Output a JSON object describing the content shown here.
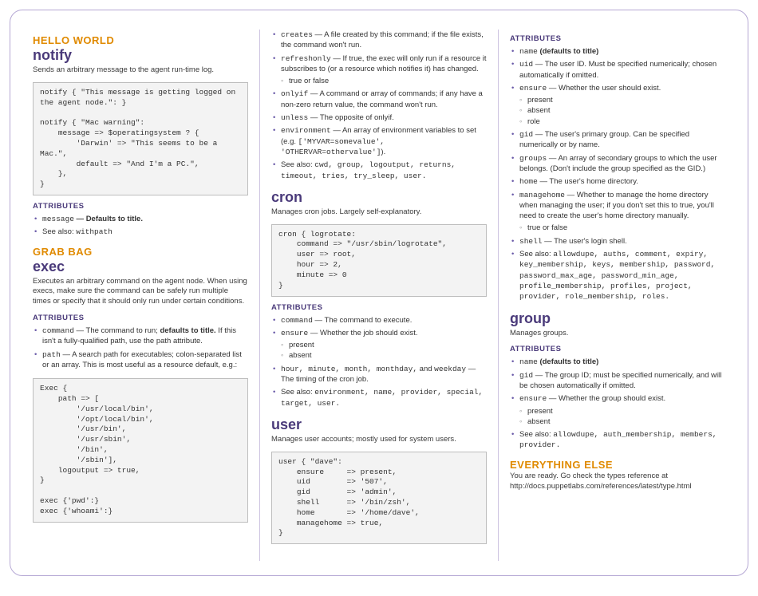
{
  "colors": {
    "section_heading": "#e08a00",
    "resource_heading": "#4a3a7a",
    "attr_heading": "#4a3a7a",
    "bullet": "#6a5aa8",
    "border": "#b5a8d4",
    "code_bg": "#f3f3f3",
    "code_border": "#bdbdbd"
  },
  "typography": {
    "body_fontsize_pt": 7.5,
    "section_fontsize_pt": 10,
    "resource_fontsize_pt": 14,
    "code_font": "Courier New"
  },
  "col1": {
    "helloworld": {
      "heading": "HELLO WORLD"
    },
    "notify": {
      "title": "notify",
      "desc": "Sends an arbitrary message to the agent run-time log.",
      "code": "notify { \"This message is getting logged on the agent node.\": }\n\nnotify { \"Mac warning\":\n    message => $operatingsystem ? {\n        'Darwin' => \"This seems to be a Mac.\",\n        default => \"And I'm a PC.\",\n    },\n}",
      "attrs_label": "ATTRIBUTES",
      "items": {
        "message_name": "message",
        "message_text": " — Defaults to title.",
        "seealso_prefix": "See also: ",
        "seealso_val": "withpath"
      }
    },
    "grabbag": {
      "heading": "GRAB BAG"
    },
    "exec": {
      "title": "exec",
      "desc": "Executes an arbitrary command on the agent node. When using execs, make sure the command can be safely run multiple times or specify that it should only run under certain conditions.",
      "attrs_label": "ATTRIBUTES",
      "items": {
        "command_name": "command",
        "command_text": " — The command to run; ",
        "command_bold": "defaults to title.",
        "command_tail": " If this isn't a fully-qualified path, use the path attribute.",
        "path_name": "path",
        "path_text": " — A search path for executables; colon-separated list or an array. This is most useful as a resource default, e.g.:"
      },
      "code": "Exec {\n    path => [\n        '/usr/local/bin',\n        '/opt/local/bin',\n        '/usr/bin',\n        '/usr/sbin',\n        '/bin',\n        '/sbin'],\n    logoutput => true,\n}\n\nexec {'pwd':}\nexec {'whoami':}"
    }
  },
  "col2": {
    "exec_cont": {
      "creates_name": "creates",
      "creates_text": " — A file created by this command; if the file exists, the command won't run.",
      "refreshonly_name": "refreshonly",
      "refreshonly_text": " — If true, the exec will only run if a resource it subscribes to (or a resource which notifies it) has changed.",
      "tf": "true or false",
      "onlyif_name": "onlyif",
      "onlyif_text": " — A command or array of commands; if any have a non-zero return value, the command won't run.",
      "unless_name": "unless",
      "unless_text": " — The opposite of onlyif.",
      "environment_name": "environment",
      "environment_text": " — An array of environment variables to set (e.g. ",
      "environment_code": "['MYVAR=somevalue', 'OTHERVAR=othervalue']",
      "environment_tail": ").",
      "seealso_prefix": "See also: ",
      "seealso_val": "cwd, group, logoutput, returns, timeout, tries, try_sleep, user."
    },
    "cron": {
      "title": "cron",
      "desc": "Manages cron jobs. Largely self-explanatory.",
      "code": "cron { logrotate:\n    command => \"/usr/sbin/logrotate\",\n    user => root,\n    hour => 2,\n    minute => 0\n}",
      "attrs_label": "ATTRIBUTES",
      "command_name": "command",
      "command_text": " — The command to execute.",
      "ensure_name": "ensure",
      "ensure_text": " — Whether the job should exist.",
      "present": "present",
      "absent": "absent",
      "timing_names": "hour, minute, month, monthday,",
      "timing_and": " and ",
      "timing_weekday": "weekday",
      "timing_text": " — The timing of the cron job.",
      "seealso_prefix": "See also: ",
      "seealso_val": "environment, name, provider, special, target, user."
    },
    "user": {
      "title": "user",
      "desc": "Manages user accounts; mostly used for system users.",
      "code": "user { \"dave\":\n    ensure     => present,\n    uid        => '507',\n    gid        => 'admin',\n    shell      => '/bin/zsh',\n    home       => '/home/dave',\n    managehome => true,\n}"
    }
  },
  "col3": {
    "user_attrs": {
      "attrs_label": "ATTRIBUTES",
      "name_name": "name",
      "name_bold": " (defaults to title)",
      "uid_name": "uid",
      "uid_text": " — The user ID. Must be specified numerically; chosen automatically if omitted.",
      "ensure_name": "ensure",
      "ensure_text": " — Whether the user should exist.",
      "present": "present",
      "absent": "absent",
      "role": "role",
      "gid_name": "gid",
      "gid_text": " — The user's primary group. Can be specified numerically or by name.",
      "groups_name": "groups",
      "groups_text": " — An array of secondary groups to which the user belongs. (Don't include the group specified as the GID.)",
      "home_name": "home",
      "home_text": " — The user's home directory.",
      "managehome_name": "managehome",
      "managehome_text": " — Whether to manage the home directory when managing the user; if you don't set this to true, you'll need to create the user's home directory manually.",
      "tf": "true or false",
      "shell_name": "shell",
      "shell_text": " — The user's login shell.",
      "seealso_prefix": "See also: ",
      "seealso_val": "allowdupe, auths, comment, expiry, key_membership, keys, membership, password, password_max_age, password_min_age, profile_membership, profiles, project, provider, role_membership, roles."
    },
    "group": {
      "title": "group",
      "desc": "Manages groups.",
      "attrs_label": "ATTRIBUTES",
      "name_name": "name",
      "name_bold": " (defaults to title)",
      "gid_name": "gid",
      "gid_text": " — The group ID; must be specified numerically, and will be chosen automatically if omitted.",
      "ensure_name": "ensure",
      "ensure_text": " — Whether the group should exist.",
      "present": "present",
      "absent": "absent",
      "seealso_prefix": "See also: ",
      "seealso_val": "allowdupe, auth_membership, members, provider."
    },
    "everything": {
      "heading": "EVERYTHING ELSE",
      "text": "You are ready. Go check the types reference at http://docs.puppetlabs.com/references/latest/type.html"
    }
  }
}
